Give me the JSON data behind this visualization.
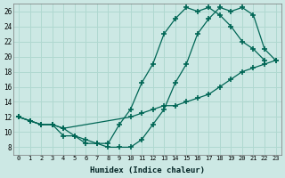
{
  "xlabel": "Humidex (Indice chaleur)",
  "bg_color": "#cce8e4",
  "grid_color": "#b0d8d0",
  "line_color": "#006655",
  "xlim": [
    -0.5,
    23.5
  ],
  "ylim": [
    7,
    27
  ],
  "xticks": [
    0,
    1,
    2,
    3,
    4,
    5,
    6,
    7,
    8,
    9,
    10,
    11,
    12,
    13,
    14,
    15,
    16,
    17,
    18,
    19,
    20,
    21,
    22,
    23
  ],
  "yticks": [
    8,
    10,
    12,
    14,
    16,
    18,
    20,
    22,
    24,
    26
  ],
  "line1_x": [
    0,
    1,
    2,
    3,
    4,
    5,
    6,
    7,
    8,
    9,
    10,
    11,
    12,
    13,
    14,
    15,
    16,
    17,
    18,
    19,
    20,
    21,
    22
  ],
  "line1_y": [
    12,
    11.5,
    11,
    11,
    9.5,
    9.5,
    8.5,
    8.5,
    8.5,
    11,
    13,
    16.5,
    19,
    23,
    25,
    26.5,
    26,
    26.5,
    25.5,
    24,
    22,
    21,
    19.5
  ],
  "line2_x": [
    0,
    1,
    2,
    3,
    4,
    10,
    11,
    12,
    13,
    14,
    15,
    16,
    17,
    18,
    19,
    20,
    21,
    22,
    23
  ],
  "line2_y": [
    12,
    11.5,
    11,
    11,
    10.5,
    12,
    12.5,
    13,
    13.5,
    13.5,
    14,
    14.5,
    15,
    16,
    17,
    18,
    18.5,
    19,
    19.5
  ],
  "line3_x": [
    0,
    1,
    2,
    3,
    4,
    5,
    6,
    7,
    8,
    9,
    10,
    11,
    12,
    13,
    14,
    15,
    16,
    17,
    18,
    19,
    20,
    21,
    22,
    23
  ],
  "line3_y": [
    12,
    11.5,
    11,
    11,
    10.5,
    9.5,
    9,
    8.5,
    8,
    8,
    8,
    9,
    11,
    13,
    16.5,
    19,
    23,
    25,
    26.5,
    26,
    26.5,
    25.5,
    21,
    19.5
  ]
}
